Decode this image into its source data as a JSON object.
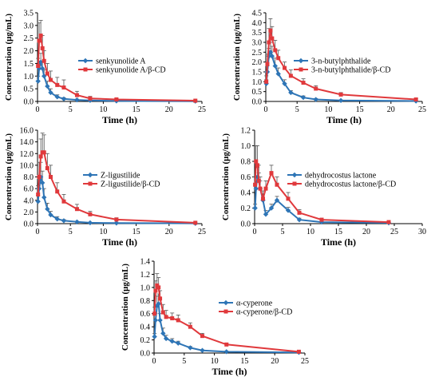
{
  "colors": {
    "blue": "#2e75b6",
    "red": "#e0393c",
    "axis": "#000000",
    "error": "#000000"
  },
  "chart_data": [
    {
      "type": "line",
      "xlabel": "Time (h)",
      "ylabel": "Concentration (μg/mL)",
      "xlim": [
        0,
        25
      ],
      "xticks": [
        0,
        5,
        10,
        15,
        20,
        25
      ],
      "ylim": [
        0,
        3.5
      ],
      "yticks": [
        "0.0",
        "0.5",
        "1.0",
        "1.5",
        "2.0",
        "2.5",
        "3.0",
        "3.5"
      ],
      "legend": "right",
      "series": [
        {
          "name": "senkyunolide A",
          "color": "blue",
          "marker": "diamond",
          "x": [
            0.083,
            0.25,
            0.5,
            0.75,
            1,
            1.5,
            2,
            3,
            4,
            6,
            8,
            12,
            24
          ],
          "y": [
            0.8,
            1.3,
            1.55,
            1.3,
            1.0,
            0.6,
            0.35,
            0.18,
            0.1,
            0.06,
            0.04,
            0.02,
            0.01
          ],
          "err": [
            0.2,
            0.3,
            0.35,
            0.3,
            0.25,
            0.2,
            0.15,
            0.08,
            0.05,
            0.03,
            0.02,
            0.01,
            0.01
          ]
        },
        {
          "name": "senkyunolide A/β-CD",
          "color": "red",
          "marker": "square",
          "x": [
            0.083,
            0.25,
            0.5,
            0.75,
            1,
            1.5,
            2,
            3,
            4,
            6,
            8,
            12,
            24
          ],
          "y": [
            1.4,
            2.4,
            2.6,
            2.1,
            1.6,
            1.1,
            0.85,
            0.65,
            0.55,
            0.25,
            0.12,
            0.08,
            0.03
          ],
          "err": [
            0.3,
            0.7,
            0.6,
            0.5,
            0.4,
            0.4,
            0.35,
            0.3,
            0.3,
            0.15,
            0.08,
            0.04,
            0.02
          ]
        }
      ]
    },
    {
      "type": "line",
      "xlabel": "Time (h)",
      "ylabel": "Concentration (μg/mL)",
      "xlim": [
        0,
        25
      ],
      "xticks": [
        0,
        5,
        10,
        15,
        20,
        25
      ],
      "ylim": [
        0,
        4.5
      ],
      "yticks": [
        "0.0",
        "0.5",
        "1.0",
        "1.5",
        "2.0",
        "2.5",
        "3.0",
        "3.5",
        "4.0",
        "4.5"
      ],
      "legend": "right",
      "series": [
        {
          "name": "3-n-butylphthalide",
          "color": "blue",
          "marker": "diamond",
          "x": [
            0.083,
            0.25,
            0.5,
            0.75,
            1,
            1.5,
            2,
            3,
            4,
            6,
            8,
            12,
            24
          ],
          "y": [
            0.9,
            1.5,
            2.3,
            2.5,
            2.3,
            1.8,
            1.4,
            0.9,
            0.45,
            0.2,
            0.1,
            0.05,
            0.02
          ],
          "err": [
            0.2,
            0.3,
            0.4,
            0.5,
            0.5,
            0.4,
            0.3,
            0.2,
            0.1,
            0.08,
            0.05,
            0.02,
            0.01
          ]
        },
        {
          "name": "3-n-butylphthalide/β-CD",
          "color": "red",
          "marker": "square",
          "x": [
            0.083,
            0.25,
            0.5,
            0.75,
            1,
            1.5,
            2,
            3,
            4,
            6,
            8,
            12,
            24
          ],
          "y": [
            1.0,
            1.9,
            3.0,
            3.6,
            3.2,
            2.6,
            2.2,
            1.7,
            1.3,
            0.95,
            0.65,
            0.35,
            0.1
          ],
          "err": [
            0.3,
            0.5,
            0.7,
            0.6,
            0.6,
            0.5,
            0.4,
            0.3,
            0.3,
            0.2,
            0.15,
            0.1,
            0.05
          ]
        }
      ]
    },
    {
      "type": "line",
      "xlabel": "Time (h)",
      "ylabel": "Concentration (μg/mL)",
      "xlim": [
        0,
        25
      ],
      "xticks": [
        0,
        5,
        10,
        15,
        20,
        25
      ],
      "ylim": [
        0,
        16
      ],
      "yticks": [
        "0.0",
        "2.0",
        "4.0",
        "6.0",
        "8.0",
        "10.0",
        "12.0",
        "14.0",
        "16.0"
      ],
      "legend": "right",
      "series": [
        {
          "name": "Z-ligustilide",
          "color": "blue",
          "marker": "diamond",
          "x": [
            0.083,
            0.25,
            0.5,
            0.75,
            1,
            1.5,
            2,
            3,
            4,
            6,
            8,
            12,
            24
          ],
          "y": [
            3.8,
            6.0,
            8.0,
            7.0,
            4.5,
            2.5,
            1.5,
            0.8,
            0.5,
            0.3,
            0.15,
            0.1,
            0.05
          ],
          "err": [
            1.0,
            2.0,
            2.5,
            2.0,
            1.5,
            1.0,
            0.6,
            0.4,
            0.2,
            0.1,
            0.05,
            0.05,
            0.02
          ]
        },
        {
          "name": "Z-ligustilide/β-CD",
          "color": "red",
          "marker": "square",
          "x": [
            0.083,
            0.25,
            0.5,
            0.75,
            1,
            1.5,
            2,
            3,
            4,
            6,
            8,
            12,
            24
          ],
          "y": [
            5.0,
            8.0,
            11.5,
            12.2,
            12.2,
            9.5,
            8.0,
            5.5,
            3.8,
            2.5,
            1.6,
            0.7,
            0.15
          ],
          "err": [
            1.5,
            2.5,
            3.0,
            3.3,
            3.0,
            2.5,
            2.0,
            1.5,
            1.2,
            0.8,
            0.5,
            0.3,
            0.05
          ]
        }
      ]
    },
    {
      "type": "line",
      "xlabel": "Time (h)",
      "ylabel": "Concentration (μg/mL)",
      "xlim": [
        0,
        30
      ],
      "xticks": [
        0,
        5,
        10,
        15,
        20,
        25,
        30
      ],
      "ylim": [
        0,
        1.2
      ],
      "yticks": [
        "0.0",
        "0.2",
        "0.4",
        "0.6",
        "0.8",
        "1.0",
        "1.2"
      ],
      "legend": "right",
      "series": [
        {
          "name": "dehydrocostus lactone",
          "color": "blue",
          "marker": "diamond",
          "x": [
            0.083,
            0.25,
            0.5,
            0.75,
            1,
            1.5,
            2,
            3,
            4,
            6,
            8,
            12,
            24
          ],
          "y": [
            0.2,
            0.45,
            0.6,
            0.55,
            0.45,
            0.3,
            0.12,
            0.2,
            0.3,
            0.17,
            0.05,
            0.02,
            0.01
          ],
          "err": [
            0.05,
            0.1,
            0.12,
            0.1,
            0.1,
            0.08,
            0.05,
            0.05,
            0.05,
            0.04,
            0.02,
            0.01,
            0.01
          ]
        },
        {
          "name": "dehydrocostus lactone/β-CD",
          "color": "red",
          "marker": "square",
          "x": [
            0.083,
            0.25,
            0.5,
            0.75,
            1,
            1.5,
            2,
            3,
            4,
            6,
            8,
            12,
            24
          ],
          "y": [
            0.5,
            0.8,
            0.75,
            0.55,
            0.45,
            0.32,
            0.45,
            0.65,
            0.5,
            0.32,
            0.14,
            0.05,
            0.02
          ],
          "err": [
            0.1,
            0.2,
            0.25,
            0.2,
            0.15,
            0.1,
            0.1,
            0.1,
            0.1,
            0.08,
            0.04,
            0.02,
            0.01
          ]
        }
      ]
    },
    {
      "type": "line",
      "xlabel": "Time (h)",
      "ylabel": "Concentration (μg/mL)",
      "xlim": [
        0,
        25
      ],
      "xticks": [
        0,
        5,
        10,
        15,
        20,
        25
      ],
      "ylim": [
        0,
        1.4
      ],
      "yticks": [
        "0.0",
        "0.2",
        "0.4",
        "0.6",
        "0.8",
        "1.0",
        "1.2",
        "1.4"
      ],
      "legend": "right",
      "series": [
        {
          "name": "α-cyperone",
          "color": "blue",
          "marker": "diamond",
          "x": [
            0.083,
            0.25,
            0.5,
            0.75,
            1,
            1.5,
            2,
            3,
            4,
            6,
            8,
            12,
            24
          ],
          "y": [
            0.25,
            0.5,
            0.72,
            0.75,
            0.5,
            0.3,
            0.22,
            0.18,
            0.15,
            0.08,
            0.04,
            0.02,
            0.01
          ],
          "err": [
            0.05,
            0.1,
            0.15,
            0.15,
            0.1,
            0.08,
            0.05,
            0.04,
            0.03,
            0.02,
            0.01,
            0.01,
            0.01
          ]
        },
        {
          "name": "α-cyperone/β-CD",
          "color": "red",
          "marker": "square",
          "x": [
            0.083,
            0.25,
            0.5,
            0.75,
            1,
            1.5,
            2,
            3,
            4,
            6,
            8,
            12,
            24
          ],
          "y": [
            0.6,
            0.95,
            1.03,
            1.0,
            0.83,
            0.62,
            0.55,
            0.53,
            0.5,
            0.4,
            0.26,
            0.13,
            0.02
          ],
          "err": [
            0.1,
            0.15,
            0.18,
            0.15,
            0.12,
            0.12,
            0.1,
            0.08,
            0.08,
            0.06,
            0.04,
            0.02,
            0.01
          ]
        }
      ]
    }
  ]
}
